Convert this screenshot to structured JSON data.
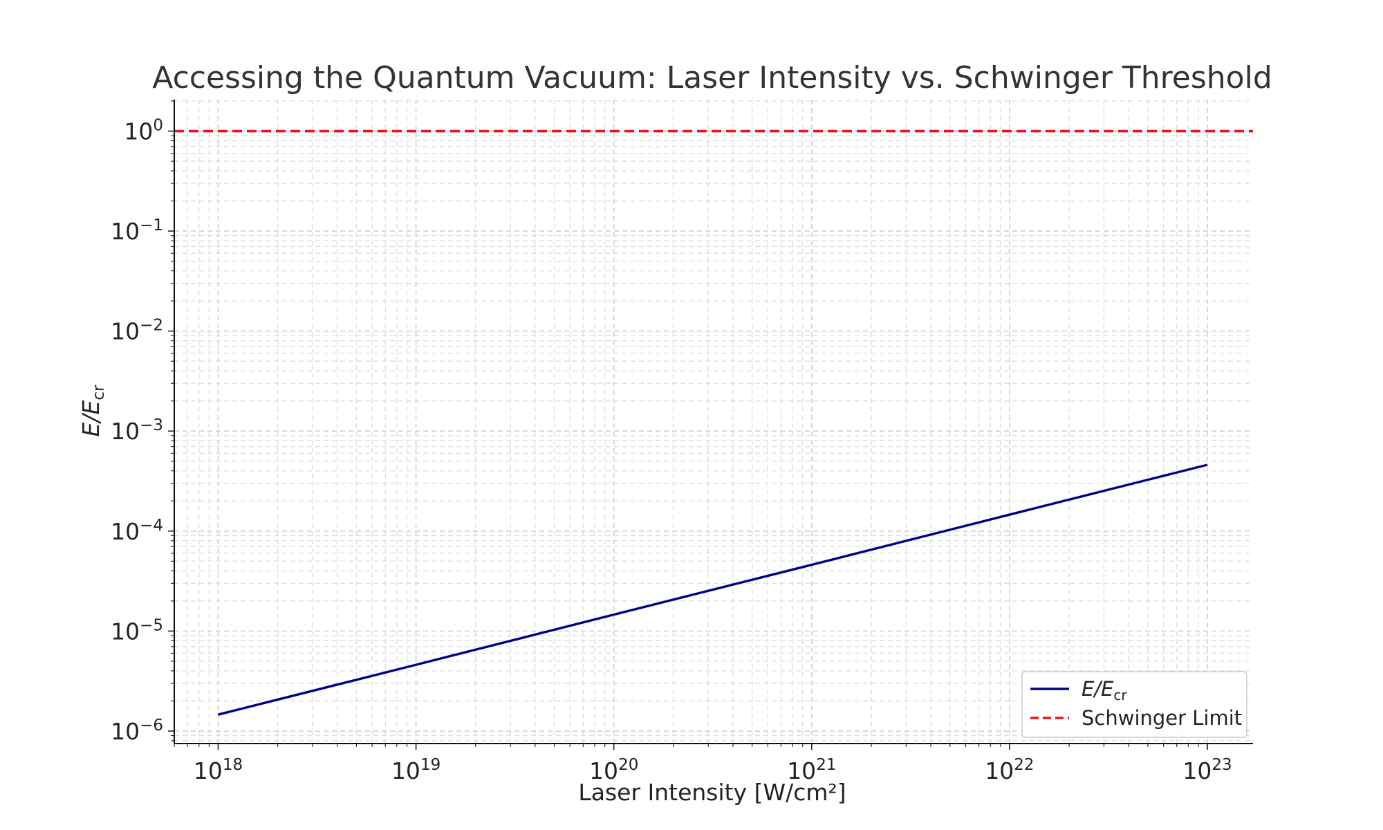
{
  "chart_data": {
    "type": "line",
    "title": "Accessing the Quantum Vacuum: Laser Intensity vs. Schwinger Threshold",
    "xlabel": "Laser Intensity [W/cm²]",
    "ylabel": {
      "main": "E/E",
      "sub": "cr"
    },
    "x_scale": "log",
    "y_scale": "log",
    "xlim": [
      6e+17,
      1.7e+23
    ],
    "ylim": [
      7.5e-07,
      2
    ],
    "x_ticks": [
      {
        "base": "10",
        "exp": "18",
        "value": 1e+18
      },
      {
        "base": "10",
        "exp": "19",
        "value": 1e+19
      },
      {
        "base": "10",
        "exp": "20",
        "value": 1e+20
      },
      {
        "base": "10",
        "exp": "21",
        "value": 1e+21
      },
      {
        "base": "10",
        "exp": "22",
        "value": 1e+22
      },
      {
        "base": "10",
        "exp": "23",
        "value": 1e+23
      }
    ],
    "y_ticks": [
      {
        "base": "10",
        "exp": "0",
        "value": 1
      },
      {
        "base": "10",
        "exp": "−1",
        "value": 0.1
      },
      {
        "base": "10",
        "exp": "−2",
        "value": 0.01
      },
      {
        "base": "10",
        "exp": "−3",
        "value": 0.001
      },
      {
        "base": "10",
        "exp": "−4",
        "value": 0.0001
      },
      {
        "base": "10",
        "exp": "−5",
        "value": 1e-05
      },
      {
        "base": "10",
        "exp": "−6",
        "value": 1e-06
      }
    ],
    "grid": true,
    "legend_position": "lower-right",
    "series": [
      {
        "name": "E/E",
        "name_sub": "cr",
        "style": "solid",
        "color": "#00008b",
        "x": [
          1e+18,
          1e+19,
          1e+20,
          1e+21,
          1e+22,
          1e+23
        ],
        "y": [
          1.46e-06,
          4.6e-06,
          1.46e-05,
          4.6e-05,
          0.000146,
          0.00046
        ]
      },
      {
        "name": "Schwinger Limit",
        "style": "dashed",
        "color": "#e8141a",
        "x": [
          6e+17,
          1.7e+23
        ],
        "y": [
          1,
          1
        ]
      }
    ]
  }
}
